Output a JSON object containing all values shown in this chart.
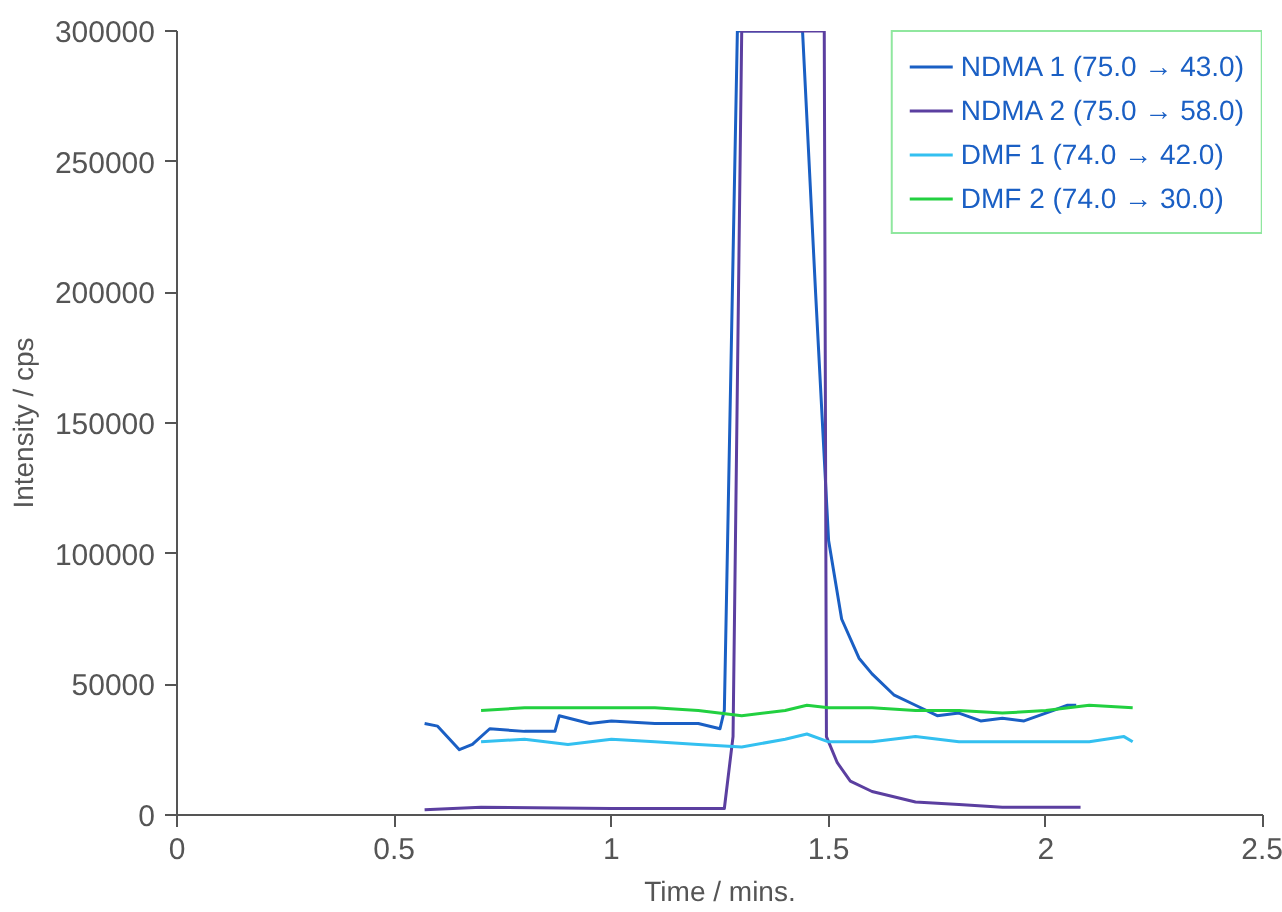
{
  "chart_data": {
    "type": "line",
    "xlabel": "Time / mins.",
    "ylabel": "Intensity / cps",
    "xlim": [
      0,
      2.5
    ],
    "xticks": [
      0,
      0.5,
      1,
      1.5,
      2,
      2.5
    ],
    "ylim": [
      0,
      300000
    ],
    "yticks": [
      0,
      50000,
      100000,
      150000,
      200000,
      250000,
      300000
    ],
    "grid": false,
    "legend": "top right",
    "series": [
      {
        "name": "NDMA 1 (75.0 → 43.0)",
        "color": "#1a5fc4",
        "x": [
          0.57,
          0.6,
          0.65,
          0.68,
          0.72,
          0.8,
          0.87,
          0.88,
          0.95,
          1.0,
          1.1,
          1.2,
          1.25,
          1.26,
          1.29,
          1.44,
          1.47,
          1.5,
          1.53,
          1.57,
          1.6,
          1.65,
          1.7,
          1.75,
          1.8,
          1.85,
          1.9,
          1.95,
          2.0,
          2.05,
          2.07
        ],
        "values": [
          35000,
          34000,
          25000,
          27000,
          33000,
          32000,
          32000,
          38000,
          35000,
          36000,
          35000,
          35000,
          33000,
          40000,
          300000,
          300000,
          200000,
          105000,
          75000,
          60000,
          54000,
          46000,
          42000,
          38000,
          39000,
          36000,
          37000,
          36000,
          39000,
          42000,
          42000
        ]
      },
      {
        "name": "NDMA 2 (75.0 → 58.0)",
        "color": "#5b3fa0",
        "x": [
          0.57,
          0.7,
          1.0,
          1.26,
          1.28,
          1.3,
          1.49,
          1.495,
          1.52,
          1.55,
          1.6,
          1.7,
          1.8,
          1.9,
          2.0,
          2.08
        ],
        "values": [
          2000,
          3000,
          2500,
          2500,
          30000,
          300000,
          300000,
          30000,
          20000,
          13000,
          9000,
          5000,
          4000,
          3000,
          3000,
          3000
        ]
      },
      {
        "name": "DMF 1 (74.0 → 42.0)",
        "color": "#33c0f0",
        "x": [
          0.7,
          0.8,
          0.9,
          1.0,
          1.1,
          1.2,
          1.3,
          1.4,
          1.45,
          1.5,
          1.6,
          1.7,
          1.8,
          2.0,
          2.1,
          2.18,
          2.2
        ],
        "values": [
          28000,
          29000,
          27000,
          29000,
          28000,
          27000,
          26000,
          29000,
          31000,
          28000,
          28000,
          30000,
          28000,
          28000,
          28000,
          30000,
          28000
        ]
      },
      {
        "name": "DMF 2 (74.0 → 30.0)",
        "color": "#22d040",
        "x": [
          0.7,
          0.8,
          0.9,
          1.0,
          1.1,
          1.2,
          1.3,
          1.4,
          1.45,
          1.5,
          1.6,
          1.7,
          1.8,
          1.9,
          2.0,
          2.1,
          2.2
        ],
        "values": [
          40000,
          41000,
          41000,
          41000,
          41000,
          40000,
          38000,
          40000,
          42000,
          41000,
          41000,
          40000,
          40000,
          39000,
          40000,
          42000,
          41000
        ]
      }
    ]
  }
}
